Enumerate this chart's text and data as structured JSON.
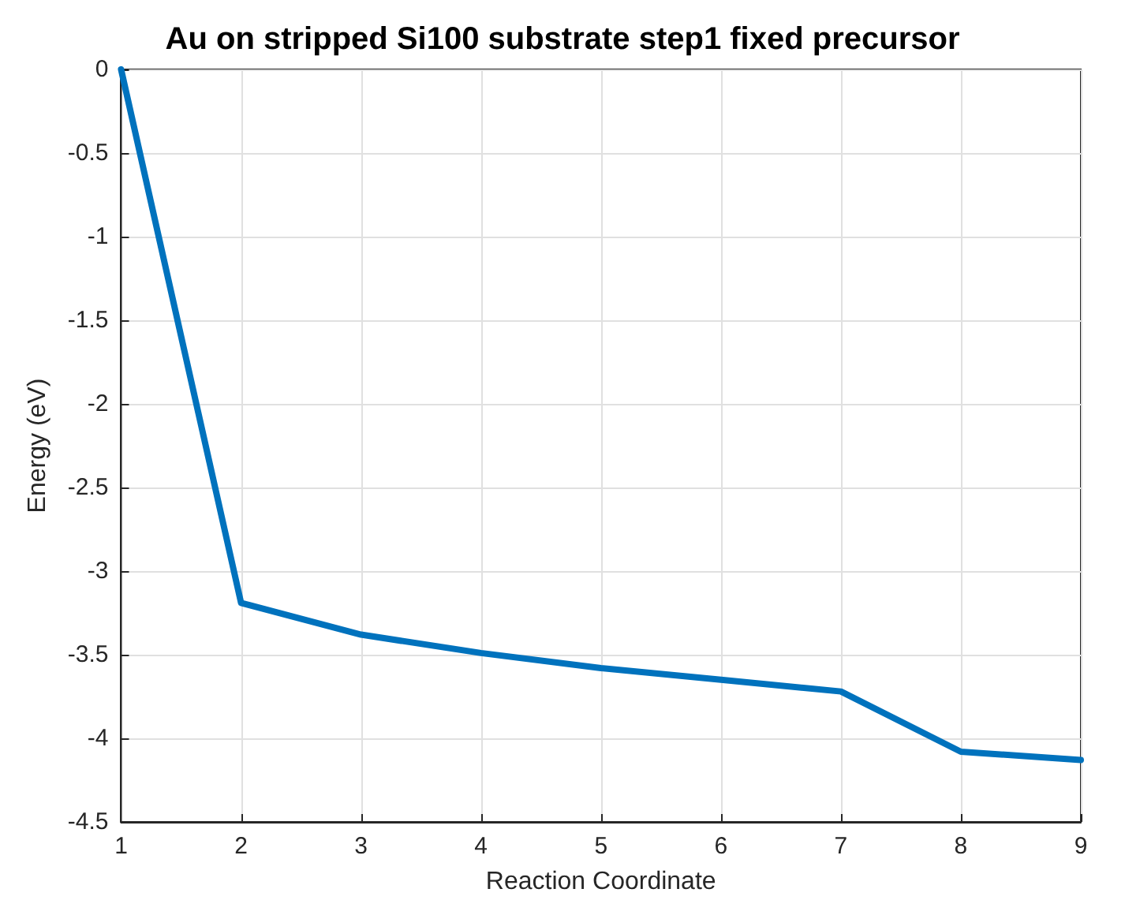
{
  "chart_data": {
    "type": "line",
    "title": "Au on stripped Si100 substrate step1 fixed precursor",
    "xlabel": "Reaction Coordinate",
    "ylabel": "Energy (eV)",
    "x": [
      1,
      2,
      3,
      4,
      5,
      6,
      7,
      8,
      9
    ],
    "series": [
      {
        "color": "#0072bd",
        "values": [
          0,
          -3.19,
          -3.38,
          -3.49,
          -3.58,
          -3.65,
          -3.72,
          -4.08,
          -4.13
        ]
      }
    ],
    "xlim": [
      1,
      9
    ],
    "xticks": [
      1,
      2,
      3,
      4,
      5,
      6,
      7,
      8,
      9
    ],
    "ylim": [
      -4.5,
      0
    ],
    "yticks": [
      -4.5,
      -4,
      -3.5,
      -3,
      -2.5,
      -2,
      -1.5,
      -1,
      -0.5,
      0
    ],
    "grid": true,
    "marker": "none",
    "line_style": "solid"
  }
}
